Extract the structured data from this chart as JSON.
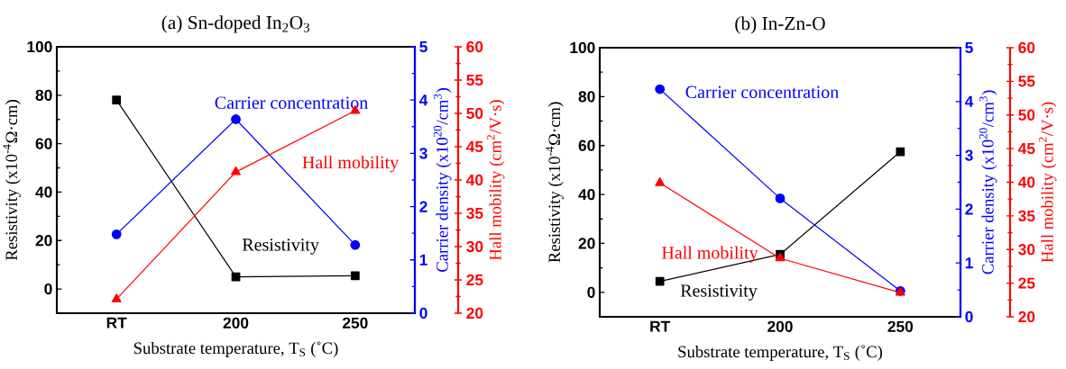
{
  "chart_data": [
    {
      "type": "line",
      "title": "(a) Sn-doped In$_{2}$O$_{3}$",
      "xlabel": "Substrate temperature, T$_{S}$ (˚C)",
      "ylabel": "Resistivity (x10$^{-4}$Ω·cm)",
      "y2label": "Carrier density (x10$^{20}$/cm$^{3}$)",
      "y3label": "Hall mobility (cm$^{2}$/V·s)",
      "categories": [
        "RT",
        "200",
        "250"
      ],
      "series": [
        {
          "name": "Resistivity",
          "color": "#000000",
          "values": [
            78,
            5,
            5.5
          ],
          "axis": "y",
          "marker": "square"
        },
        {
          "name": "Carrier concentration",
          "color": "#0000ff",
          "values": [
            1.48,
            3.64,
            1.28
          ],
          "axis": "y2",
          "marker": "circle"
        },
        {
          "name": "Hall mobility",
          "color": "#ff0000",
          "values": [
            22.1,
            41.2,
            50.4
          ],
          "axis": "y3",
          "marker": "triangle"
        }
      ],
      "ylim": [
        -10,
        100
      ],
      "yticks": [
        0,
        20,
        40,
        60,
        80,
        100
      ],
      "y2lim": [
        0,
        5
      ],
      "y2ticks": [
        0,
        1,
        2,
        3,
        4,
        5
      ],
      "y3lim": [
        20,
        60
      ],
      "y3ticks": [
        20,
        25,
        30,
        35,
        40,
        45,
        50,
        55,
        60
      ],
      "line_style": "solid",
      "grid": false
    },
    {
      "type": "line",
      "title": "(b) In-Zn-O",
      "xlabel": "Substrate temperature, T$_{S}$ (˚C)",
      "ylabel": "Resistivity (x10$^{-4}$Ω·cm)",
      "y2label": "Carrier density (x10$^{20}$/cm$^{3}$)",
      "y3label": "Hall mobility (cm$^{2}$/V·s)",
      "categories": [
        "RT",
        "200",
        "250"
      ],
      "series": [
        {
          "name": "Resistivity",
          "color": "#000000",
          "values": [
            4.5,
            15.5,
            57.5
          ],
          "axis": "y",
          "marker": "square"
        },
        {
          "name": "Carrier concentration",
          "color": "#0000ff",
          "values": [
            4.23,
            2.2,
            0.48
          ],
          "axis": "y2",
          "marker": "circle"
        },
        {
          "name": "Hall mobility",
          "color": "#ff0000",
          "values": [
            39.9,
            28.7,
            23.6
          ],
          "axis": "y3",
          "marker": "triangle"
        }
      ],
      "ylim": [
        -10,
        100
      ],
      "yticks": [
        0,
        20,
        40,
        60,
        80,
        100
      ],
      "y2lim": [
        0,
        5
      ],
      "y2ticks": [
        0,
        1,
        2,
        3,
        4,
        5
      ],
      "y3lim": [
        20,
        60
      ],
      "y3ticks": [
        20,
        25,
        30,
        35,
        40,
        45,
        50,
        55,
        60
      ],
      "line_style": "solid",
      "grid": false
    }
  ]
}
